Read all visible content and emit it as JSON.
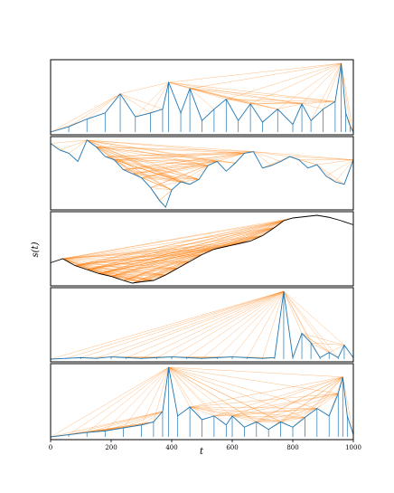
{
  "chart_data": {
    "type": "line",
    "xlabel": "t",
    "ylabel": "s(t)",
    "xlim": [
      0,
      1000
    ],
    "xticks": [
      0,
      200,
      400,
      600,
      800,
      1000
    ],
    "grid": false,
    "colors": {
      "edges": "#ff7f0e",
      "series": "#1f77b4",
      "smooth_series": "#000000"
    },
    "panels": [
      {
        "name": "panel-1",
        "style": "spikes",
        "x": [
          0,
          60,
          120,
          180,
          230,
          280,
          330,
          370,
          390,
          430,
          460,
          500,
          540,
          580,
          620,
          660,
          700,
          750,
          800,
          830,
          860,
          900,
          940,
          960,
          975,
          990,
          1000
        ],
        "y": [
          0.05,
          0.12,
          0.22,
          0.3,
          0.55,
          0.25,
          0.3,
          0.35,
          0.7,
          0.3,
          0.62,
          0.2,
          0.35,
          0.48,
          0.2,
          0.42,
          0.18,
          0.35,
          0.15,
          0.42,
          0.2,
          0.35,
          0.45,
          0.95,
          0.3,
          0.12,
          0.05
        ]
      },
      {
        "name": "panel-2",
        "style": "noisy",
        "x": [
          0,
          30,
          60,
          90,
          120,
          150,
          180,
          210,
          240,
          270,
          300,
          330,
          360,
          380,
          400,
          430,
          460,
          490,
          520,
          550,
          580,
          610,
          640,
          670,
          700,
          730,
          760,
          790,
          820,
          850,
          880,
          910,
          940,
          970,
          1000
        ],
        "y": [
          0.82,
          0.74,
          0.7,
          0.6,
          0.86,
          0.78,
          0.66,
          0.62,
          0.5,
          0.45,
          0.4,
          0.28,
          0.12,
          0.04,
          0.25,
          0.35,
          0.32,
          0.38,
          0.55,
          0.6,
          0.48,
          0.58,
          0.7,
          0.72,
          0.52,
          0.55,
          0.6,
          0.66,
          0.62,
          0.52,
          0.56,
          0.42,
          0.35,
          0.32,
          0.62
        ]
      },
      {
        "name": "panel-3",
        "style": "smooth",
        "x": [
          0,
          40,
          80,
          120,
          160,
          200,
          240,
          270,
          300,
          340,
          380,
          420,
          460,
          500,
          540,
          580,
          620,
          660,
          700,
          740,
          770,
          800,
          840,
          880,
          920,
          960,
          1000
        ],
        "y": [
          0.3,
          0.36,
          0.26,
          0.2,
          0.14,
          0.1,
          0.04,
          0.0,
          0.02,
          0.04,
          0.12,
          0.22,
          0.32,
          0.42,
          0.5,
          0.54,
          0.58,
          0.62,
          0.7,
          0.82,
          0.92,
          0.96,
          0.98,
          1.0,
          0.97,
          0.92,
          0.86
        ]
      },
      {
        "name": "panel-4",
        "style": "spikes",
        "x": [
          0,
          50,
          100,
          150,
          200,
          250,
          300,
          350,
          400,
          450,
          500,
          550,
          600,
          650,
          700,
          740,
          770,
          800,
          830,
          860,
          890,
          920,
          950,
          970,
          1000
        ],
        "y": [
          0.03,
          0.04,
          0.05,
          0.04,
          0.06,
          0.05,
          0.04,
          0.05,
          0.06,
          0.05,
          0.04,
          0.05,
          0.06,
          0.05,
          0.04,
          0.05,
          0.95,
          0.05,
          0.38,
          0.25,
          0.05,
          0.12,
          0.05,
          0.22,
          0.05
        ]
      },
      {
        "name": "panel-5",
        "style": "spikes",
        "x": [
          0,
          60,
          120,
          180,
          240,
          300,
          340,
          370,
          390,
          420,
          460,
          500,
          540,
          580,
          600,
          640,
          680,
          720,
          760,
          800,
          840,
          880,
          920,
          950,
          965,
          980,
          1000
        ],
        "y": [
          0.02,
          0.05,
          0.08,
          0.1,
          0.14,
          0.18,
          0.22,
          0.36,
          0.95,
          0.3,
          0.42,
          0.25,
          0.3,
          0.18,
          0.3,
          0.15,
          0.22,
          0.12,
          0.22,
          0.15,
          0.28,
          0.4,
          0.3,
          0.6,
          0.82,
          0.3,
          0.05
        ]
      }
    ]
  }
}
